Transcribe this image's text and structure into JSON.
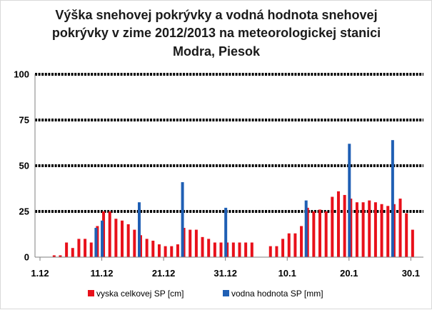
{
  "chart_data": {
    "type": "bar",
    "title_lines": [
      "Výška snehovej pokrývky a vodná hodnota snehovej",
      "pokrývky v zime 2012/2013 na meteorologickej stanici",
      "Modra, Piesok"
    ],
    "xlabel": "",
    "ylabel": "",
    "ylim": [
      0,
      100
    ],
    "yticks": [
      "0",
      "25",
      "50",
      "75",
      "100"
    ],
    "xlim": [
      1,
      62
    ],
    "xticks": [
      {
        "label": "1.12",
        "day": 1
      },
      {
        "label": "11.12",
        "day": 11
      },
      {
        "label": "21.12",
        "day": 21
      },
      {
        "label": "31.12",
        "day": 31
      },
      {
        "label": "10.1",
        "day": 41
      },
      {
        "label": "20.1",
        "day": 51
      },
      {
        "label": "30.1",
        "day": 61
      }
    ],
    "grid": "major y, dotted",
    "legend_position": "bottom",
    "colors": {
      "snow_depth": "#e8101a",
      "water_equivalent": "#1f5fb4",
      "grid": "#000000",
      "axis": "#7f7f7f"
    },
    "series": [
      {
        "name": "vyska celkovej SP [cm]",
        "kind": "snow_depth",
        "points": [
          [
            3,
            1
          ],
          [
            4,
            1
          ],
          [
            5,
            8
          ],
          [
            6,
            5
          ],
          [
            7,
            10
          ],
          [
            8,
            10
          ],
          [
            9,
            8
          ],
          [
            10,
            17
          ],
          [
            11,
            25
          ],
          [
            12,
            25
          ],
          [
            13,
            21
          ],
          [
            14,
            20
          ],
          [
            15,
            18
          ],
          [
            16,
            15
          ],
          [
            17,
            12
          ],
          [
            18,
            10
          ],
          [
            19,
            9
          ],
          [
            20,
            7
          ],
          [
            21,
            6
          ],
          [
            22,
            6
          ],
          [
            23,
            7
          ],
          [
            24,
            16
          ],
          [
            25,
            15
          ],
          [
            26,
            15
          ],
          [
            27,
            11
          ],
          [
            28,
            10
          ],
          [
            29,
            8
          ],
          [
            30,
            8
          ],
          [
            31,
            8
          ],
          [
            32,
            8
          ],
          [
            33,
            8
          ],
          [
            34,
            8
          ],
          [
            35,
            8
          ],
          [
            38,
            6
          ],
          [
            39,
            6
          ],
          [
            40,
            10
          ],
          [
            41,
            13
          ],
          [
            42,
            13
          ],
          [
            43,
            17
          ],
          [
            44,
            27
          ],
          [
            45,
            25
          ],
          [
            46,
            26
          ],
          [
            47,
            25
          ],
          [
            48,
            33
          ],
          [
            49,
            36
          ],
          [
            50,
            34
          ],
          [
            51,
            32
          ],
          [
            52,
            30
          ],
          [
            53,
            30
          ],
          [
            54,
            31
          ],
          [
            55,
            30
          ],
          [
            56,
            29
          ],
          [
            57,
            28
          ],
          [
            58,
            29
          ],
          [
            59,
            32
          ],
          [
            60,
            24
          ],
          [
            61,
            15
          ]
        ]
      },
      {
        "name": "vodna hodnota SP [mm]",
        "kind": "water_equivalent",
        "points": [
          [
            10,
            16
          ],
          [
            11,
            20
          ],
          [
            17,
            30
          ],
          [
            24,
            41
          ],
          [
            31,
            27
          ],
          [
            44,
            31
          ],
          [
            51,
            62
          ],
          [
            58,
            64
          ]
        ]
      }
    ]
  }
}
